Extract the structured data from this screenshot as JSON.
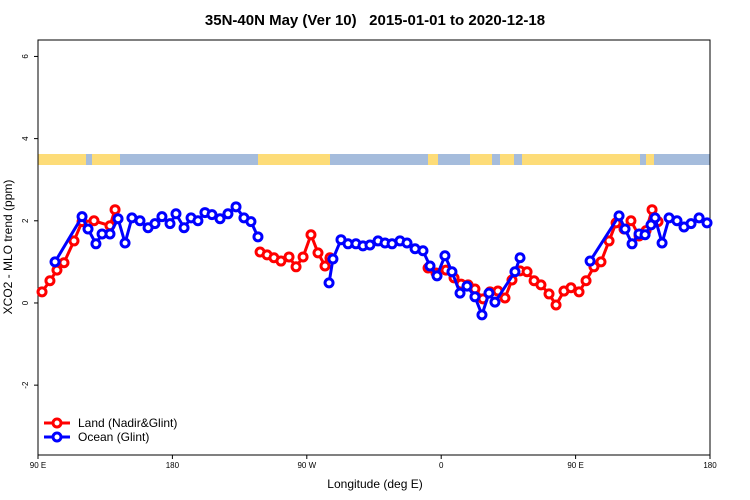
{
  "chart_data": {
    "type": "line",
    "title": "35N-40N May (Ver 10)   2015-01-01 to 2020-12-18",
    "x_label": "Longitude (deg E)",
    "y_label": "XCO2 - MLO trend (ppm)",
    "xlim": [
      90,
      540
    ],
    "ylim": [
      -3.7,
      6.4
    ],
    "xticks": [
      {
        "value": 90,
        "label": "90 E"
      },
      {
        "value": 180,
        "label": "180"
      },
      {
        "value": 270,
        "label": "90 W"
      },
      {
        "value": 360,
        "label": "0"
      },
      {
        "value": 450,
        "label": "90 E"
      },
      {
        "value": 540,
        "label": "180"
      }
    ],
    "yticks": [
      -2,
      0,
      2,
      4,
      6
    ],
    "legend": "bottom-left",
    "series": [
      {
        "name": "Land (Nadir&Glint)",
        "color": "#ff0000",
        "x": [
          92.7,
          98,
          102.7,
          107.4,
          114.1,
          119.5,
          127.5,
          138.2,
          141.6,
          190,
          238.7,
          243.4,
          248,
          252.7,
          258.1,
          262.8,
          267.5,
          272.8,
          277.5,
          282.2,
          285.5,
          320,
          351.2,
          356.5,
          363.2,
          368.6,
          373.3,
          378,
          382.6,
          388,
          392.7,
          398,
          402.7,
          407.4,
          412.8,
          417.5,
          422.2,
          426.8,
          432.2,
          436.9,
          442.2,
          446.9,
          452.3,
          457,
          462.3,
          467,
          472.4,
          477.1,
          482.4,
          487.1,
          492.5,
          497.2,
          501.2,
          505.2
        ],
        "values": [
          0.27,
          0.54,
          0.8,
          0.98,
          1.51,
          1.98,
          2.0,
          1.88,
          2.27,
          null,
          1.24,
          1.17,
          1.1,
          1.02,
          1.12,
          0.88,
          1.12,
          1.66,
          1.22,
          0.9,
          1.1,
          null,
          0.85,
          0.73,
          0.8,
          0.61,
          0.46,
          0.44,
          0.34,
          0.1,
          0.27,
          0.29,
          0.12,
          0.56,
          0.78,
          0.76,
          0.54,
          0.44,
          0.22,
          -0.05,
          0.29,
          0.37,
          0.27,
          0.54,
          0.88,
          1.0,
          1.51,
          1.95,
          1.8,
          2.0,
          1.63,
          1.76,
          2.27,
          1.98
        ]
      },
      {
        "name": "Ocean (Glint)",
        "color": "#0000ff",
        "x": [
          101.4,
          119.5,
          123.5,
          128.8,
          132.9,
          138.2,
          143.6,
          148.3,
          152.9,
          158.3,
          163.7,
          168.3,
          173,
          178.4,
          182.4,
          187.8,
          192.5,
          197.1,
          201.8,
          206.5,
          211.9,
          217.2,
          222.6,
          227.9,
          232.6,
          237.3,
          260,
          284.9,
          287.5,
          292.9,
          297.6,
          302.9,
          307.6,
          312.3,
          317.7,
          322.4,
          327.1,
          332.4,
          337.1,
          342.5,
          347.8,
          352.5,
          357.2,
          362.5,
          367.2,
          372.6,
          377.3,
          382.6,
          387.3,
          392,
          396,
          409.4,
          412.8,
          440,
          459.7,
          479.1,
          483.1,
          487.8,
          492.5,
          496.5,
          500.5,
          503.2,
          507.9,
          512.6,
          517.9,
          522.6,
          527.3,
          532.7,
          538
        ],
        "values": [
          1.0,
          2.1,
          1.8,
          1.44,
          1.68,
          1.68,
          2.05,
          1.46,
          2.07,
          2.0,
          1.83,
          1.93,
          2.1,
          1.93,
          2.17,
          1.83,
          2.07,
          2.0,
          2.2,
          2.15,
          2.05,
          2.17,
          2.34,
          2.07,
          1.98,
          1.61,
          null,
          0.49,
          1.07,
          1.54,
          1.44,
          1.44,
          1.39,
          1.41,
          1.51,
          1.46,
          1.44,
          1.51,
          1.46,
          1.32,
          1.27,
          0.9,
          0.66,
          1.15,
          0.76,
          0.24,
          0.41,
          0.15,
          -0.29,
          0.24,
          0.02,
          0.76,
          1.1,
          null,
          1.02,
          2.12,
          1.8,
          1.44,
          1.68,
          1.66,
          1.9,
          2.07,
          1.46,
          2.07,
          2.0,
          1.85,
          1.93,
          2.07,
          1.95
        ]
      }
    ]
  }
}
